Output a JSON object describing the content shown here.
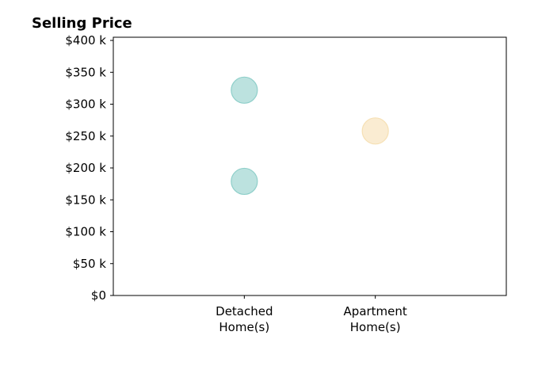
{
  "chart_data": {
    "type": "scatter",
    "title": "Selling Price",
    "xlabel": "",
    "ylabel": "",
    "categories": [
      [
        "Detached",
        "Home(s)"
      ],
      [
        "Apartment",
        "Home(s)"
      ]
    ],
    "xlim": [
      -1,
      2
    ],
    "ylim": [
      0,
      405000
    ],
    "yticks": [
      0,
      50000,
      100000,
      150000,
      200000,
      250000,
      300000,
      350000,
      400000
    ],
    "ytick_labels": [
      "$0",
      "$50 k",
      "$100 k",
      "$150 k",
      "$200 k",
      "$250 k",
      "$300 k",
      "$350 k",
      "$400 k"
    ],
    "grid": false,
    "series": [
      {
        "category": 0,
        "values": [
          322000,
          179000
        ],
        "color": "#8fcfca"
      },
      {
        "category": 1,
        "values": [
          258000
        ],
        "color": "#f6e0b4"
      }
    ]
  }
}
